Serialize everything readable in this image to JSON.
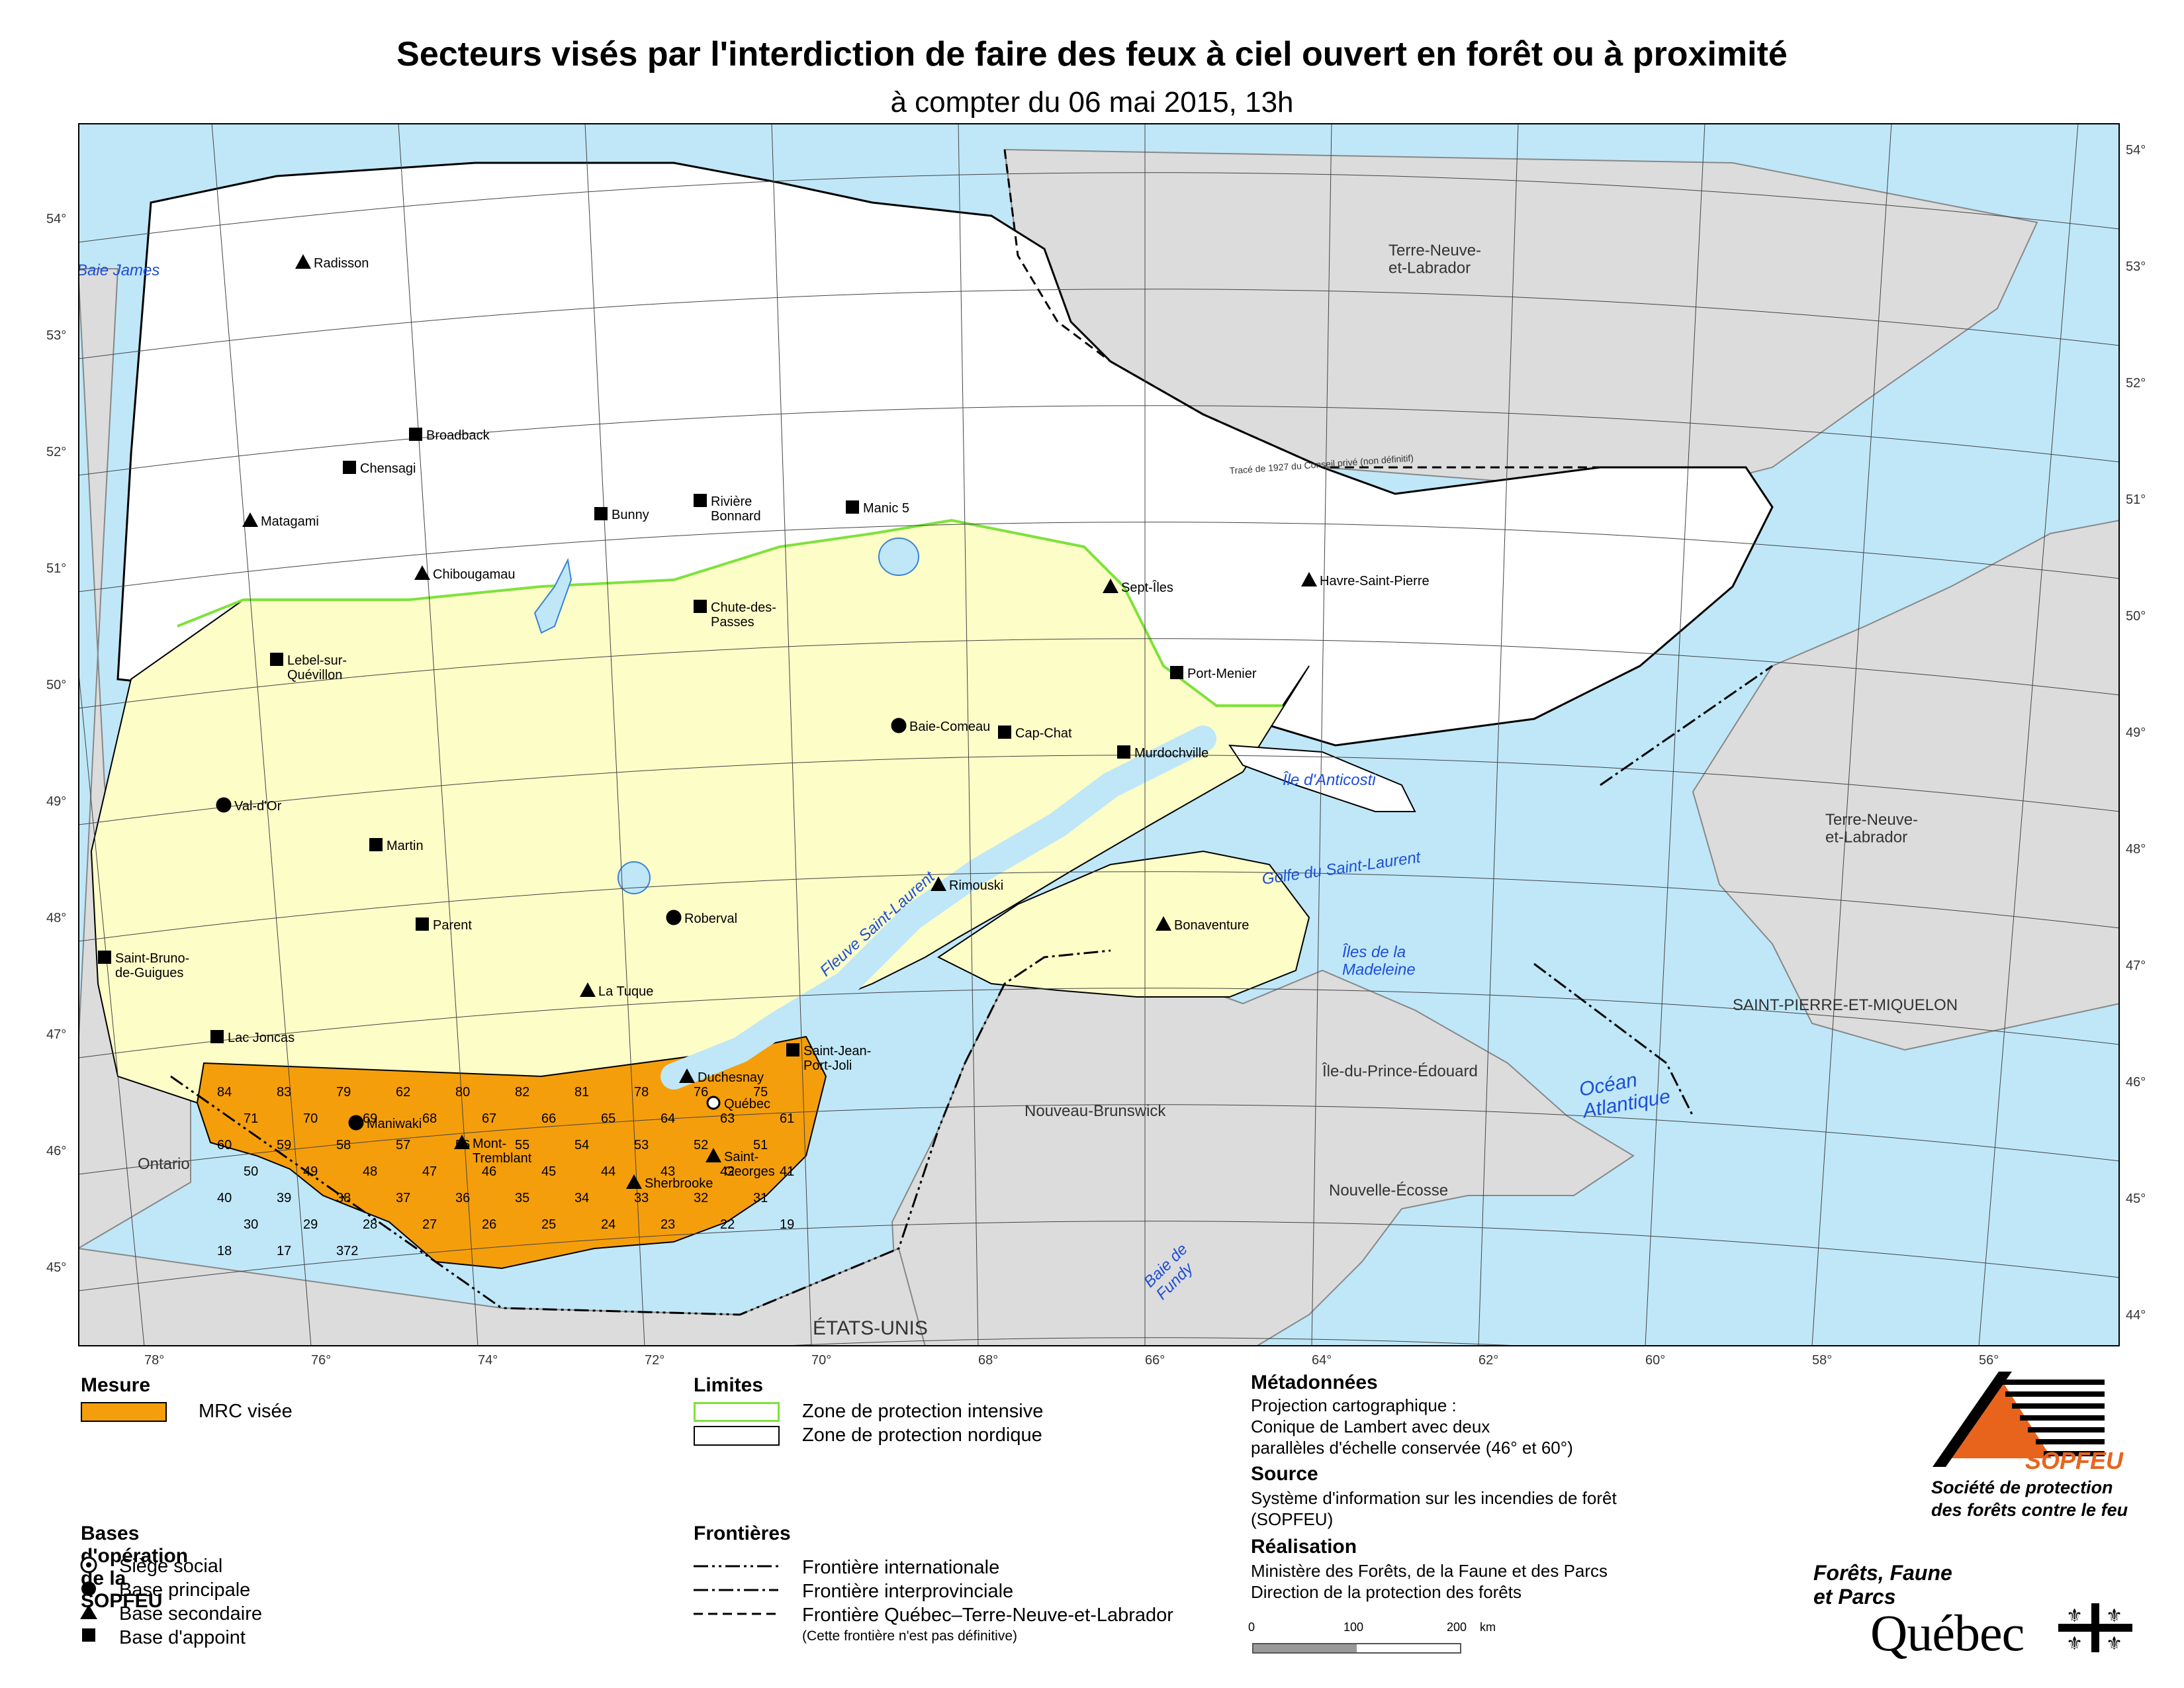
{
  "title": "Secteurs visés par l'interdiction de faire des feux à ciel ouvert en forêt ou à proximité",
  "subtitle": "à compter du 06 mai 2015, 13h",
  "colors": {
    "water": "#bfe7f8",
    "neighbor_land": "#dcdcdc",
    "nordic_zone": "#ffffff",
    "intensive_zone": "#fdfdc8",
    "mrc_targeted": "#f59e0b",
    "intensive_border": "#7ee23a",
    "river": "#3b82d6"
  },
  "lat_labels_left": [
    "54°",
    "53°",
    "52°",
    "51°",
    "50°",
    "49°",
    "48°",
    "47°",
    "46°",
    "45°"
  ],
  "lat_labels_right": [
    "54°",
    "53°",
    "52°",
    "51°",
    "50°",
    "49°",
    "48°",
    "47°",
    "46°",
    "45°",
    "44°"
  ],
  "lon_labels": [
    "78°",
    "76°",
    "74°",
    "72°",
    "70°",
    "68°",
    "66°",
    "64°",
    "62°",
    "60°",
    "58°",
    "56°"
  ],
  "regions": {
    "nl_north": "Terre-Neuve-\net-Labrador",
    "nl_island": "Terre-Neuve-\net-Labrador",
    "ontario": "Ontario",
    "usa": "ÉTATS-UNIS",
    "nb": "Nouveau-Brunswick",
    "pei": "Île-du-Prince-Édouard",
    "ns": "Nouvelle-Écosse",
    "spm": "SAINT-PIERRE-ET-MIQUELON",
    "baie_james": "Baie James",
    "fleuve": "Fleuve Saint-Laurent",
    "golfe": "Golfe du Saint-Laurent",
    "anticosti": "Île d'Anticosti",
    "madeleine": "Îles de la\nMadeleine",
    "ocean": "Océan\nAtlantique",
    "fundy": "Baie de\nFundy",
    "trace_1927": "Tracé de 1927 du Conseil privé (non définitif)"
  },
  "bases": [
    {
      "name": "Radisson",
      "type": "secondaire"
    },
    {
      "name": "Broadback",
      "type": "appoint"
    },
    {
      "name": "Chensagi",
      "type": "appoint"
    },
    {
      "name": "Matagami",
      "type": "secondaire"
    },
    {
      "name": "Chibougamau",
      "type": "secondaire"
    },
    {
      "name": "Bunny",
      "type": "appoint"
    },
    {
      "name": "Rivière\nBonnard",
      "type": "appoint"
    },
    {
      "name": "Manic 5",
      "type": "appoint"
    },
    {
      "name": "Chute-des-\nPasses",
      "type": "appoint"
    },
    {
      "name": "Lebel-sur-\nQuévillon",
      "type": "appoint"
    },
    {
      "name": "Sept-Îles",
      "type": "secondaire"
    },
    {
      "name": "Havre-Saint-Pierre",
      "type": "secondaire"
    },
    {
      "name": "Port-Menier",
      "type": "appoint"
    },
    {
      "name": "Baie-Comeau",
      "type": "principale"
    },
    {
      "name": "Cap-Chat",
      "type": "appoint"
    },
    {
      "name": "Murdochville",
      "type": "appoint"
    },
    {
      "name": "Val-d'Or",
      "type": "principale"
    },
    {
      "name": "Martin",
      "type": "appoint"
    },
    {
      "name": "Roberval",
      "type": "principale"
    },
    {
      "name": "Parent",
      "type": "appoint"
    },
    {
      "name": "Rimouski",
      "type": "secondaire"
    },
    {
      "name": "Bonaventure",
      "type": "secondaire"
    },
    {
      "name": "Saint-Bruno-\nde-Guigues",
      "type": "appoint"
    },
    {
      "name": "La Tuque",
      "type": "secondaire"
    },
    {
      "name": "Lac Joncas",
      "type": "appoint"
    },
    {
      "name": "Saint-Jean-\nPort-Joli",
      "type": "appoint"
    },
    {
      "name": "Duchesnay",
      "type": "secondaire"
    },
    {
      "name": "Québec",
      "type": "siege"
    },
    {
      "name": "Maniwaki",
      "type": "principale"
    },
    {
      "name": "Mont-\nTremblant",
      "type": "secondaire"
    },
    {
      "name": "Saint-\nGeorges",
      "type": "secondaire"
    },
    {
      "name": "Sherbrooke",
      "type": "secondaire"
    }
  ],
  "mrc_numbers": [
    "84",
    "83",
    "79",
    "62",
    "80",
    "82",
    "81",
    "78",
    "76",
    "75",
    "71",
    "70",
    "69",
    "68",
    "67",
    "66",
    "65",
    "64",
    "63",
    "61",
    "60",
    "59",
    "58",
    "57",
    "56",
    "55",
    "54",
    "53",
    "52",
    "51",
    "50",
    "49",
    "48",
    "47",
    "46",
    "45",
    "44",
    "43",
    "42",
    "41",
    "40",
    "39",
    "38",
    "37",
    "36",
    "35",
    "34",
    "33",
    "32",
    "31",
    "30",
    "29",
    "28",
    "27",
    "26",
    "25",
    "24",
    "23",
    "22",
    "19",
    "18",
    "17",
    "372"
  ],
  "legend": {
    "mesure_title": "Mesure",
    "mrc_visee": "MRC visée",
    "limites_title": "Limites",
    "zone_intensive": "Zone de protection intensive",
    "zone_nordique": "Zone de protection nordique",
    "bases_title": "Bases d'opération de la SOPFEU",
    "siege": "Siège social",
    "principale": "Base principale",
    "secondaire": "Base secondaire",
    "appoint": "Base d'appoint",
    "frontieres_title": "Frontières",
    "internationale": "Frontière internationale",
    "interprovinciale": "Frontière interprovinciale",
    "qc_tnl": "Frontière Québec–Terre-Neuve-et-Labrador",
    "qc_tnl_note": "(Cette frontière n'est pas définitive)"
  },
  "metadata": {
    "title": "Métadonnées",
    "proj_1": "Projection cartographique :",
    "proj_2": "Conique de Lambert avec deux",
    "proj_3": "parallèles d'échelle conservée (46° et 60°)",
    "source_title": "Source",
    "source_1": "Système d'information sur les incendies de forêt",
    "source_2": "(SOPFEU)",
    "realisation_title": "Réalisation",
    "real_1": "Ministère des Forêts, de la Faune et des Parcs",
    "real_2": "Direction de la protection des forêts"
  },
  "scale": {
    "s0": "0",
    "s1": "100",
    "s2": "200",
    "unit": "km"
  },
  "logos": {
    "sopfeu": "SOPFEU",
    "sopfeu_1": "Société de protection",
    "sopfeu_2": "des forêts contre le feu",
    "mffp_1": "Forêts, Faune",
    "mffp_2": "et Parcs",
    "quebec": "Québec"
  }
}
